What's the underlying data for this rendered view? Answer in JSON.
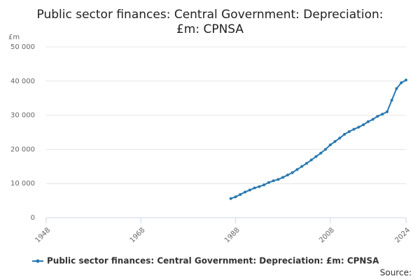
{
  "chart_data": {
    "type": "line",
    "title_lines": [
      "Public sector finances: Central Government: Depreciation:",
      "£m: CPNSA"
    ],
    "y_label": "£m",
    "source": "Source:",
    "x": [
      1987,
      1988,
      1989,
      1990,
      1991,
      1992,
      1993,
      1994,
      1995,
      1996,
      1997,
      1998,
      1999,
      2000,
      2001,
      2002,
      2003,
      2004,
      2005,
      2006,
      2007,
      2008,
      2009,
      2010,
      2011,
      2012,
      2013,
      2014,
      2015,
      2016,
      2017,
      2018,
      2019,
      2020,
      2021,
      2022,
      2023,
      2024
    ],
    "series": [
      {
        "name": "Public sector finances: Central Government: Depreciation: £m: CPNSA",
        "color": "#2878b0",
        "values": [
          5600,
          6100,
          6800,
          7500,
          8100,
          8700,
          9100,
          9600,
          10300,
          10800,
          11200,
          11800,
          12500,
          13200,
          14100,
          15000,
          15900,
          16900,
          17900,
          18900,
          20000,
          21300,
          22300,
          23300,
          24400,
          25200,
          25900,
          26500,
          27200,
          28100,
          28800,
          29700,
          30300,
          31000,
          34400,
          37800,
          39500,
          40300
        ]
      }
    ],
    "xlim": [
      1948,
      2024
    ],
    "xticks": [
      1948,
      1968,
      1988,
      2008,
      2024
    ],
    "ylim": [
      0,
      50000
    ],
    "yticks": [
      0,
      {
        "value": 10000,
        "label": "10 000"
      },
      {
        "value": 20000,
        "label": "20 000"
      },
      {
        "value": 30000,
        "label": "30 000"
      },
      {
        "value": 40000,
        "label": "40 000"
      },
      {
        "value": 50000,
        "label": "50 000"
      }
    ],
    "grid": true,
    "legend": "bottom"
  }
}
